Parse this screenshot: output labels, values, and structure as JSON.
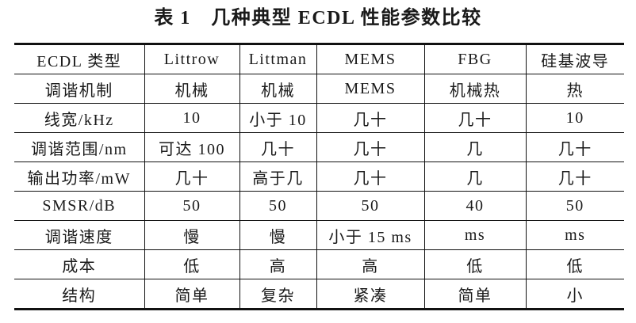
{
  "title": "表 1　几种典型 ECDL 性能参数比较",
  "colors": {
    "text": "#1a1a1a",
    "border": "#111111",
    "background": "#ffffff"
  },
  "chart_data": {
    "type": "table",
    "title": "表 1　几种典型 ECDL 性能参数比较",
    "headers": [
      "ECDL 类型",
      "Littrow",
      "Littman",
      "MEMS",
      "FBG",
      "硅基波导"
    ],
    "rows": [
      [
        "调谐机制",
        "机械",
        "机械",
        "MEMS",
        "机械热",
        "热"
      ],
      [
        "线宽/kHz",
        "10",
        "小于 10",
        "几十",
        "几十",
        "10"
      ],
      [
        "调谐范围/nm",
        "可达 100",
        "几十",
        "几十",
        "几",
        "几十"
      ],
      [
        "输出功率/mW",
        "几十",
        "高于几",
        "几十",
        "几",
        "几十"
      ],
      [
        "SMSR/dB",
        "50",
        "50",
        "50",
        "40",
        "50"
      ],
      [
        "调谐速度",
        "慢",
        "慢",
        "小于 15 ms",
        "ms",
        "ms"
      ],
      [
        "成本",
        "低",
        "高",
        "高",
        "低",
        "低"
      ],
      [
        "结构",
        "简单",
        "复杂",
        "紧凑",
        "简单",
        "小"
      ]
    ]
  }
}
